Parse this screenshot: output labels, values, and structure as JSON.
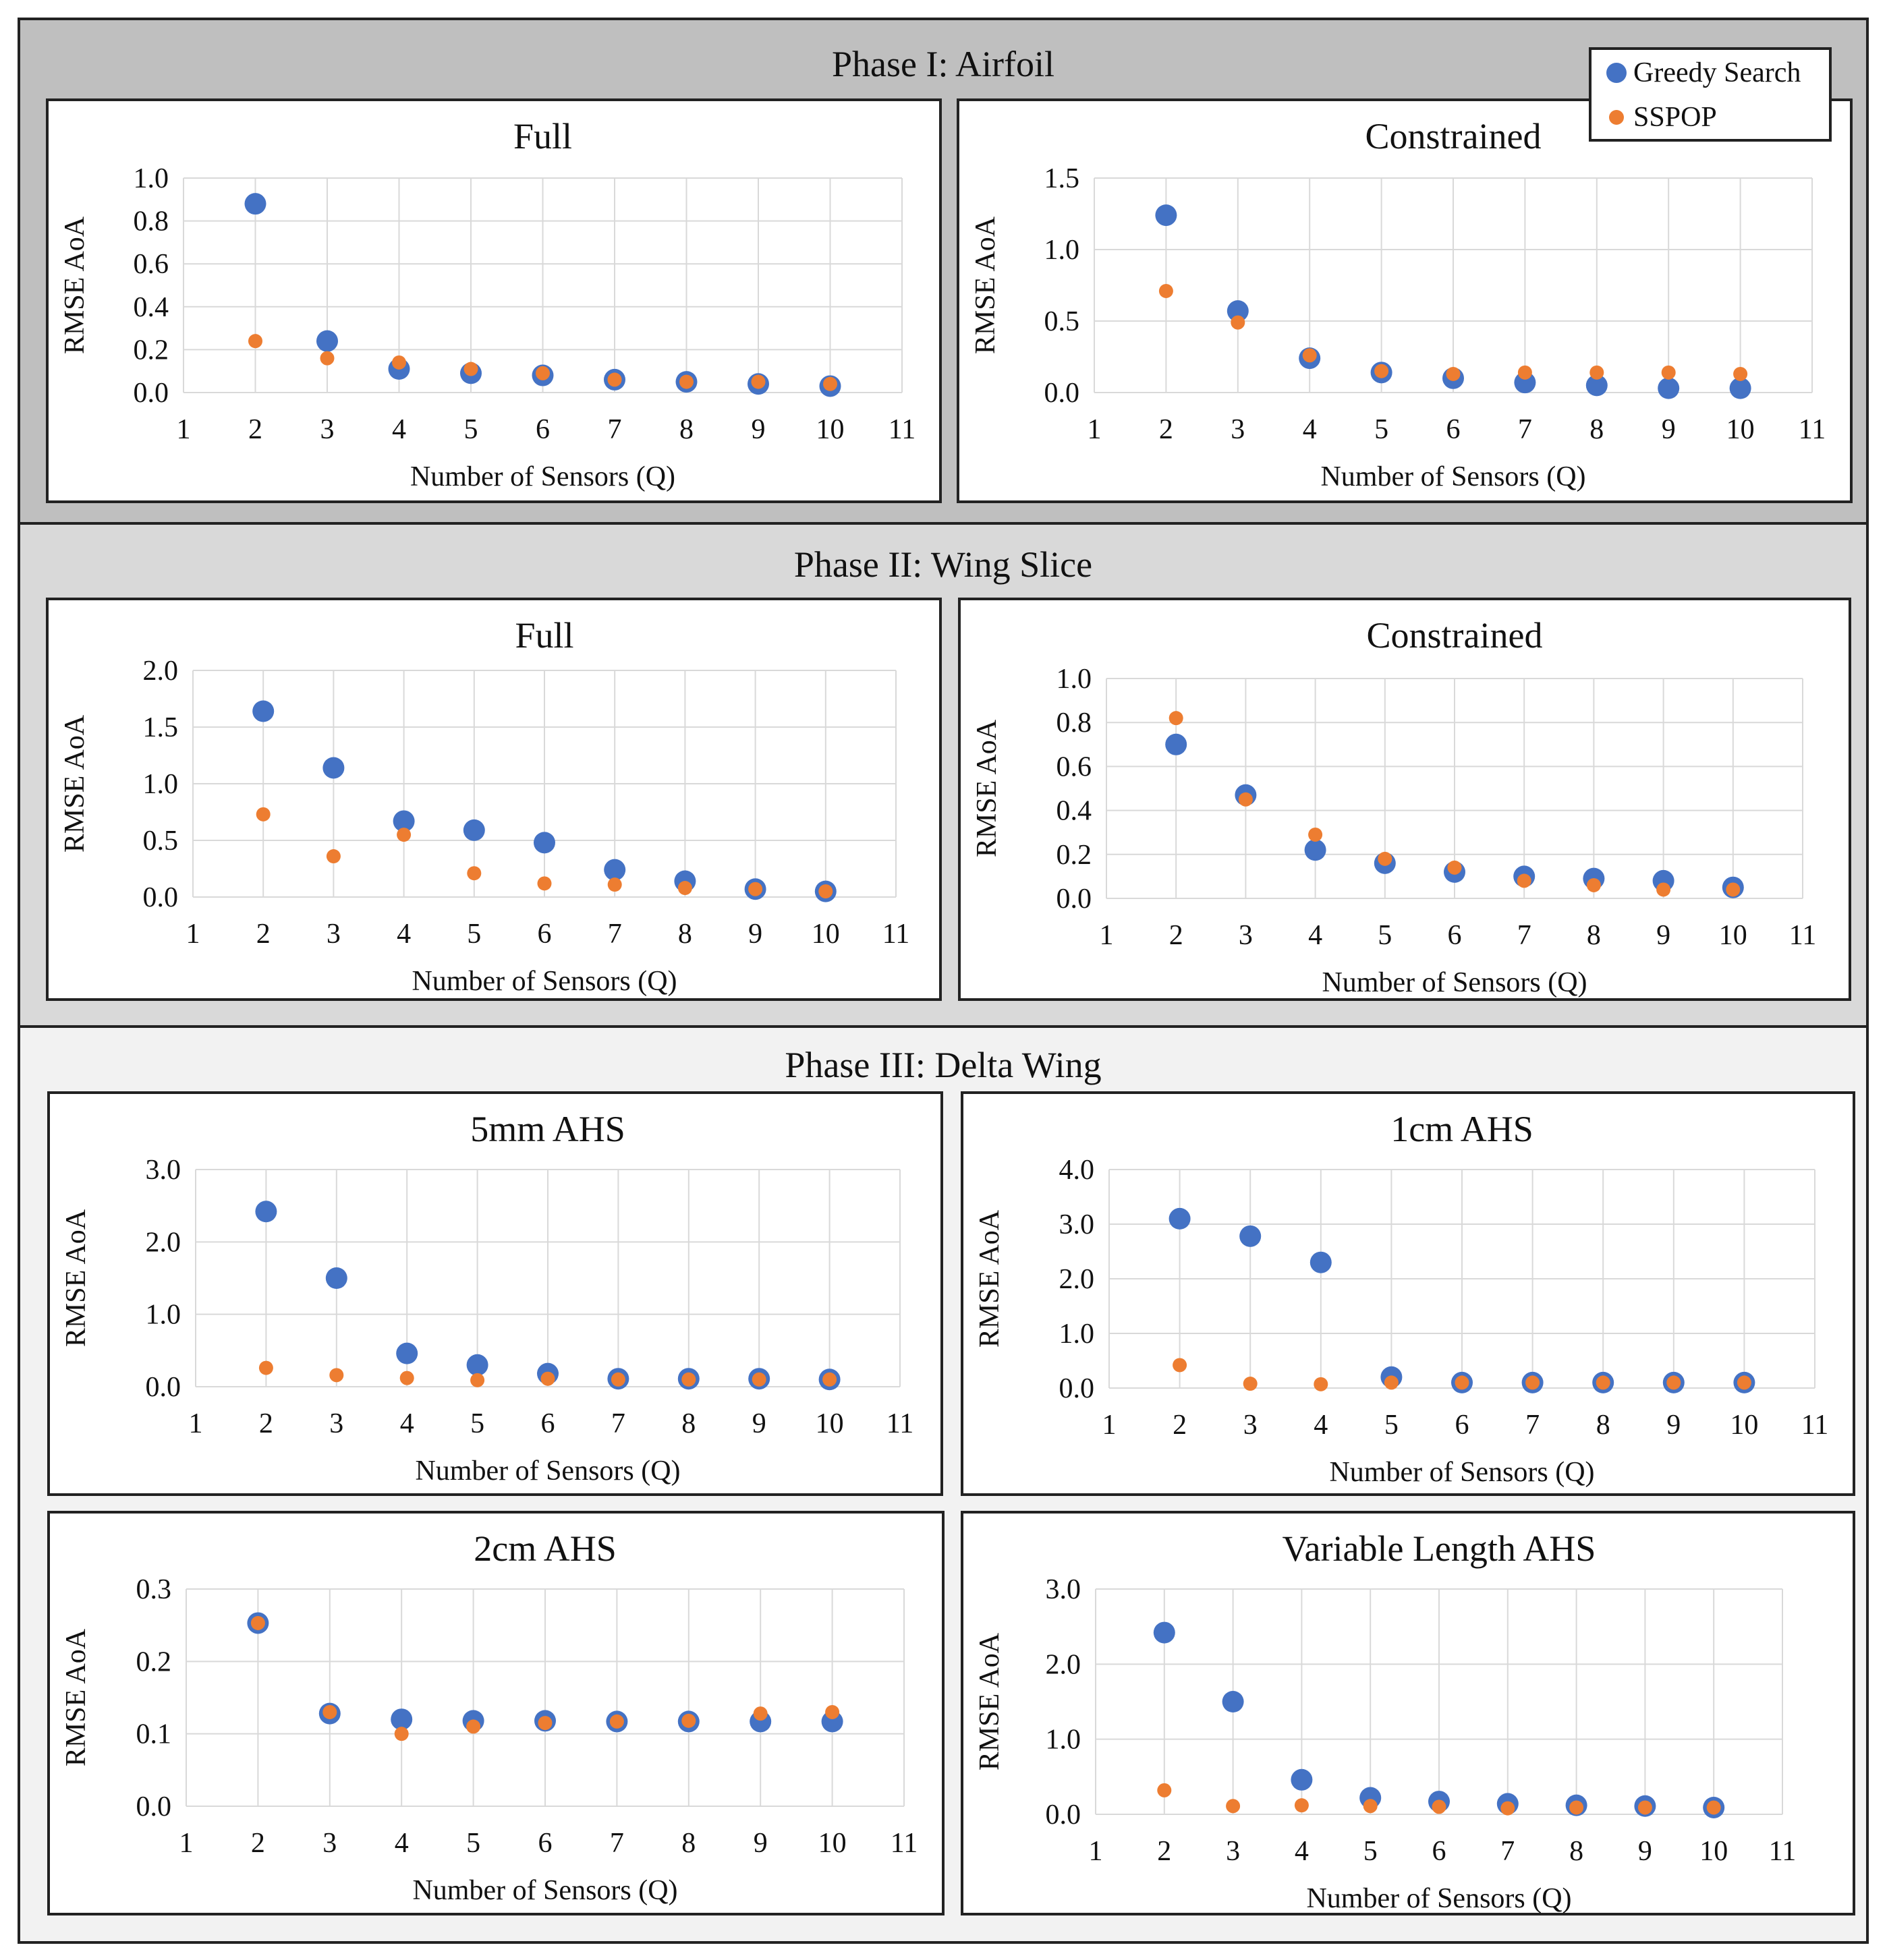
{
  "legend": {
    "greedy_label": "Greedy Search",
    "sspop_label": "SSPOP",
    "greedy_color": "#4472c4",
    "sspop_color": "#ed7d31"
  },
  "phases": [
    {
      "title": "Phase I: Airfoil"
    },
    {
      "title": "Phase II: Wing Slice"
    },
    {
      "title": "Phase III: Delta Wing"
    }
  ],
  "chart_data": [
    {
      "id": "p1-full",
      "type": "scatter",
      "phase": "Phase I: Airfoil",
      "title": "Full",
      "xlabel": "Number of Sensors (Q)",
      "ylabel": "RMSE AoA",
      "xlim": [
        1,
        11
      ],
      "ylim": [
        0,
        1.0
      ],
      "xticks": [
        1,
        2,
        3,
        4,
        5,
        6,
        7,
        8,
        9,
        10,
        11
      ],
      "yticks": [
        0,
        0.2,
        0.4,
        0.6,
        0.8,
        1.0
      ],
      "ytick_labels": [
        "0.0",
        "0.2",
        "0.4",
        "0.6",
        "0.8",
        "1.0"
      ],
      "x": [
        2,
        3,
        4,
        5,
        6,
        7,
        8,
        9,
        10
      ],
      "series": [
        {
          "name": "Greedy Search",
          "values": [
            0.88,
            0.24,
            0.11,
            0.09,
            0.08,
            0.06,
            0.05,
            0.04,
            0.03
          ]
        },
        {
          "name": "SSPOP",
          "values": [
            0.24,
            0.16,
            0.14,
            0.11,
            0.09,
            0.06,
            0.05,
            0.05,
            0.04
          ]
        }
      ]
    },
    {
      "id": "p1-con",
      "type": "scatter",
      "phase": "Phase I: Airfoil",
      "title": "Constrained",
      "xlabel": "Number of Sensors (Q)",
      "ylabel": "RMSE AoA",
      "xlim": [
        1,
        11
      ],
      "ylim": [
        0,
        1.5
      ],
      "xticks": [
        1,
        2,
        3,
        4,
        5,
        6,
        7,
        8,
        9,
        10,
        11
      ],
      "yticks": [
        0,
        0.5,
        1.0,
        1.5
      ],
      "ytick_labels": [
        "0.0",
        "0.5",
        "1.0",
        "1.5"
      ],
      "x": [
        2,
        3,
        4,
        5,
        6,
        7,
        8,
        9,
        10
      ],
      "series": [
        {
          "name": "Greedy Search",
          "values": [
            1.24,
            0.57,
            0.24,
            0.14,
            0.1,
            0.07,
            0.05,
            0.03,
            0.03
          ]
        },
        {
          "name": "SSPOP",
          "values": [
            0.71,
            0.49,
            0.26,
            0.15,
            0.13,
            0.14,
            0.14,
            0.14,
            0.13
          ]
        }
      ]
    },
    {
      "id": "p2-full",
      "type": "scatter",
      "phase": "Phase II: Wing Slice",
      "title": "Full",
      "xlabel": "Number of Sensors (Q)",
      "ylabel": "RMSE AoA",
      "xlim": [
        1,
        11
      ],
      "ylim": [
        0,
        2.0
      ],
      "xticks": [
        1,
        2,
        3,
        4,
        5,
        6,
        7,
        8,
        9,
        10,
        11
      ],
      "yticks": [
        0,
        0.5,
        1.0,
        1.5,
        2.0
      ],
      "ytick_labels": [
        "0.0",
        "0.5",
        "1.0",
        "1.5",
        "2.0"
      ],
      "x": [
        2,
        3,
        4,
        5,
        6,
        7,
        8,
        9,
        10
      ],
      "series": [
        {
          "name": "Greedy Search",
          "values": [
            1.64,
            1.14,
            0.67,
            0.59,
            0.48,
            0.24,
            0.14,
            0.07,
            0.05
          ]
        },
        {
          "name": "SSPOP",
          "values": [
            0.73,
            0.36,
            0.55,
            0.21,
            0.12,
            0.11,
            0.08,
            0.07,
            0.05
          ]
        }
      ]
    },
    {
      "id": "p2-con",
      "type": "scatter",
      "phase": "Phase II: Wing Slice",
      "title": "Constrained",
      "xlabel": "Number of Sensors (Q)",
      "ylabel": "RMSE AoA",
      "xlim": [
        1,
        11
      ],
      "ylim": [
        0,
        1.0
      ],
      "xticks": [
        1,
        2,
        3,
        4,
        5,
        6,
        7,
        8,
        9,
        10,
        11
      ],
      "yticks": [
        0,
        0.2,
        0.4,
        0.6,
        0.8,
        1.0
      ],
      "ytick_labels": [
        "0.0",
        "0.2",
        "0.4",
        "0.6",
        "0.8",
        "1.0"
      ],
      "x": [
        2,
        3,
        4,
        5,
        6,
        7,
        8,
        9,
        10
      ],
      "series": [
        {
          "name": "Greedy Search",
          "values": [
            0.7,
            0.47,
            0.22,
            0.16,
            0.12,
            0.1,
            0.09,
            0.08,
            0.05
          ]
        },
        {
          "name": "SSPOP",
          "values": [
            0.82,
            0.45,
            0.29,
            0.18,
            0.14,
            0.08,
            0.06,
            0.04,
            0.04
          ]
        }
      ]
    },
    {
      "id": "p3-5mm",
      "type": "scatter",
      "phase": "Phase III: Delta Wing",
      "title": "5mm AHS",
      "xlabel": "Number of Sensors (Q)",
      "ylabel": "RMSE AoA",
      "xlim": [
        1,
        11
      ],
      "ylim": [
        0,
        3.0
      ],
      "xticks": [
        1,
        2,
        3,
        4,
        5,
        6,
        7,
        8,
        9,
        10,
        11
      ],
      "yticks": [
        0,
        1.0,
        2.0,
        3.0
      ],
      "ytick_labels": [
        "0.0",
        "1.0",
        "2.0",
        "3.0"
      ],
      "x": [
        2,
        3,
        4,
        5,
        6,
        7,
        8,
        9,
        10
      ],
      "series": [
        {
          "name": "Greedy Search",
          "values": [
            2.42,
            1.5,
            0.46,
            0.3,
            0.18,
            0.11,
            0.11,
            0.11,
            0.1
          ]
        },
        {
          "name": "SSPOP",
          "values": [
            0.26,
            0.16,
            0.12,
            0.09,
            0.11,
            0.1,
            0.1,
            0.1,
            0.1
          ]
        }
      ]
    },
    {
      "id": "p3-1cm",
      "type": "scatter",
      "phase": "Phase III: Delta Wing",
      "title": "1cm AHS",
      "xlabel": "Number of Sensors (Q)",
      "ylabel": "RMSE AoA",
      "xlim": [
        1,
        11
      ],
      "ylim": [
        0,
        4.0
      ],
      "xticks": [
        1,
        2,
        3,
        4,
        5,
        6,
        7,
        8,
        9,
        10,
        11
      ],
      "yticks": [
        0,
        1.0,
        2.0,
        3.0,
        4.0
      ],
      "ytick_labels": [
        "0.0",
        "1.0",
        "2.0",
        "3.0",
        "4.0"
      ],
      "x": [
        2,
        3,
        4,
        5,
        6,
        7,
        8,
        9,
        10
      ],
      "series": [
        {
          "name": "Greedy Search",
          "values": [
            3.1,
            2.78,
            2.3,
            0.2,
            0.1,
            0.1,
            0.1,
            0.1,
            0.1
          ]
        },
        {
          "name": "SSPOP",
          "values": [
            0.42,
            0.08,
            0.07,
            0.1,
            0.1,
            0.1,
            0.1,
            0.1,
            0.1
          ]
        }
      ]
    },
    {
      "id": "p3-2cm",
      "type": "scatter",
      "phase": "Phase III: Delta Wing",
      "title": "2cm AHS",
      "xlabel": "Number of Sensors (Q)",
      "ylabel": "RMSE AoA",
      "xlim": [
        1,
        11
      ],
      "ylim": [
        0,
        0.3
      ],
      "xticks": [
        1,
        2,
        3,
        4,
        5,
        6,
        7,
        8,
        9,
        10,
        11
      ],
      "yticks": [
        0,
        0.1,
        0.2,
        0.3
      ],
      "ytick_labels": [
        "0.0",
        "0.1",
        "0.2",
        "0.3"
      ],
      "x": [
        2,
        3,
        4,
        5,
        6,
        7,
        8,
        9,
        10
      ],
      "series": [
        {
          "name": "Greedy Search",
          "values": [
            0.253,
            0.128,
            0.12,
            0.118,
            0.118,
            0.117,
            0.117,
            0.117,
            0.117
          ]
        },
        {
          "name": "SSPOP",
          "values": [
            0.253,
            0.13,
            0.1,
            0.11,
            0.115,
            0.117,
            0.118,
            0.128,
            0.13
          ]
        }
      ]
    },
    {
      "id": "p3-var",
      "type": "scatter",
      "phase": "Phase III: Delta Wing",
      "title": "Variable Length AHS",
      "xlabel": "Number of Sensors (Q)",
      "ylabel": "RMSE AoA",
      "xlim": [
        1,
        11
      ],
      "ylim": [
        0,
        3.0
      ],
      "xticks": [
        1,
        2,
        3,
        4,
        5,
        6,
        7,
        8,
        9,
        10,
        11
      ],
      "yticks": [
        0,
        1.0,
        2.0,
        3.0
      ],
      "ytick_labels": [
        "0.0",
        "1.0",
        "2.0",
        "3.0"
      ],
      "x": [
        2,
        3,
        4,
        5,
        6,
        7,
        8,
        9,
        10
      ],
      "series": [
        {
          "name": "Greedy Search",
          "values": [
            2.42,
            1.5,
            0.46,
            0.22,
            0.17,
            0.14,
            0.12,
            0.11,
            0.09
          ]
        },
        {
          "name": "SSPOP",
          "values": [
            0.32,
            0.11,
            0.12,
            0.11,
            0.1,
            0.08,
            0.09,
            0.09,
            0.09
          ]
        }
      ]
    }
  ]
}
